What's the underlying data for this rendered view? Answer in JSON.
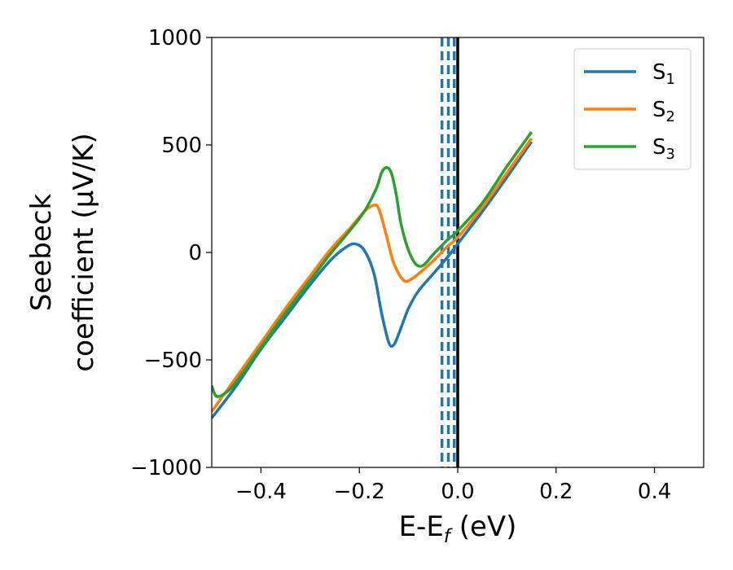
{
  "chart_data": {
    "type": "line",
    "xlabel_main": "E-E",
    "xlabel_sub": "f",
    "xlabel_unit": " (eV)",
    "ylabel_line1": "Seebeck",
    "ylabel_line2": "coefficient  (μV/K)",
    "xlim": [
      -0.5,
      0.5
    ],
    "ylim": [
      -1000,
      1000
    ],
    "xticks": [
      -0.4,
      -0.2,
      0.0,
      0.2,
      0.4
    ],
    "xtick_labels": [
      "−0.4",
      "−0.2",
      "0.0",
      "0.2",
      "0.4"
    ],
    "yticks": [
      -1000,
      -500,
      0,
      500,
      1000
    ],
    "ytick_labels": [
      "−1000",
      "−500",
      "0",
      "500",
      "1000"
    ],
    "grid": false,
    "legend_position": "top-right",
    "series": [
      {
        "name": "S",
        "sub": "1",
        "color": "#1f77b4",
        "x": [
          -0.5,
          -0.45,
          -0.4,
          -0.35,
          -0.3,
          -0.26,
          -0.23,
          -0.21,
          -0.19,
          -0.17,
          -0.155,
          -0.14,
          -0.13,
          -0.12,
          -0.1,
          -0.08,
          -0.05,
          -0.02,
          0.0,
          0.05,
          0.1,
          0.15
        ],
        "y": [
          -770,
          -620,
          -450,
          -300,
          -150,
          -40,
          20,
          40,
          10,
          -100,
          -280,
          -420,
          -430,
          -380,
          -260,
          -180,
          -100,
          -20,
          40,
          190,
          350,
          515
        ]
      },
      {
        "name": "S",
        "sub": "2",
        "color": "#ff7f0e",
        "x": [
          -0.5,
          -0.45,
          -0.4,
          -0.35,
          -0.3,
          -0.26,
          -0.22,
          -0.19,
          -0.17,
          -0.16,
          -0.145,
          -0.13,
          -0.11,
          -0.095,
          -0.08,
          -0.05,
          -0.02,
          0.0,
          0.05,
          0.1,
          0.15
        ],
        "y": [
          -740,
          -580,
          -420,
          -260,
          -110,
          10,
          110,
          190,
          220,
          200,
          80,
          -50,
          -130,
          -125,
          -100,
          -40,
          30,
          70,
          210,
          370,
          530
        ]
      },
      {
        "name": "S",
        "sub": "3",
        "color": "#2ca02c",
        "x": [
          -0.5,
          -0.49,
          -0.47,
          -0.45,
          -0.4,
          -0.35,
          -0.3,
          -0.26,
          -0.22,
          -0.19,
          -0.165,
          -0.155,
          -0.145,
          -0.135,
          -0.125,
          -0.115,
          -0.1,
          -0.085,
          -0.07,
          -0.05,
          -0.02,
          0.0,
          0.05,
          0.1,
          0.15
        ],
        "y": [
          -620,
          -670,
          -650,
          -600,
          -440,
          -280,
          -130,
          -10,
          100,
          190,
          300,
          370,
          395,
          370,
          270,
          130,
          10,
          -55,
          -60,
          -10,
          60,
          100,
          230,
          400,
          560
        ]
      }
    ],
    "vlines": [
      {
        "x": -0.032,
        "color": "#1f77b4",
        "style": "dashed"
      },
      {
        "x": -0.019,
        "color": "#1f77b4",
        "style": "dashed"
      },
      {
        "x": -0.007,
        "color": "#1f77b4",
        "style": "dashed"
      },
      {
        "x": 0.0,
        "color": "#000000",
        "style": "solid"
      }
    ]
  }
}
